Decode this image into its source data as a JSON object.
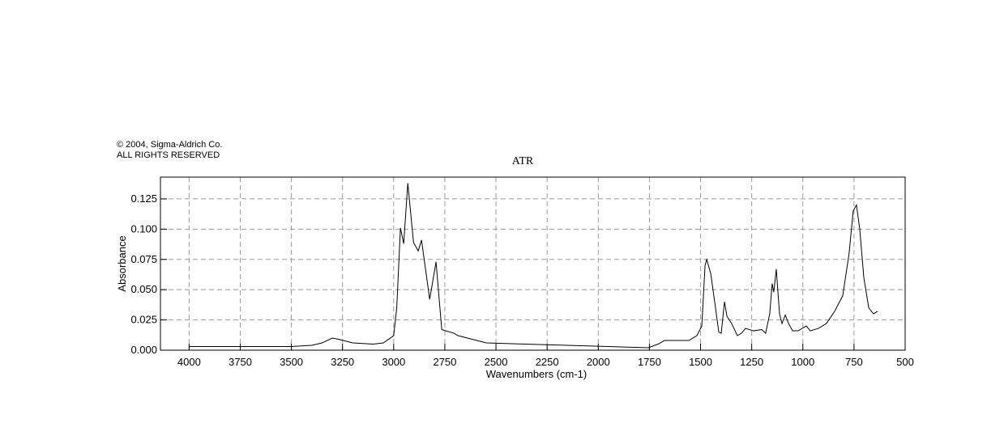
{
  "copyright": [
    "© 2004, Sigma-Aldrich Co.",
    "ALL RIGHTS RESERVED"
  ],
  "chart_data": {
    "type": "line",
    "title": "ATR",
    "x_label": "Wavenumbers (cm-1)",
    "y_label": "Absorbance",
    "xlim": [
      4140,
      500
    ],
    "ylim": [
      0,
      0.143
    ],
    "xticks": [
      4000,
      3750,
      3500,
      3250,
      3000,
      2750,
      2500,
      2250,
      2000,
      1750,
      1500,
      1250,
      1000,
      750,
      500
    ],
    "yticks": [
      {
        "value": 0,
        "label": "0.000"
      },
      0.025,
      {
        "value": 0.05,
        "label": "0.050"
      },
      0.075,
      {
        "value": 0.1,
        "label": "0.100"
      },
      0.125
    ],
    "grid": true,
    "series": [
      {
        "color": "#000000",
        "x": [
          4000,
          3500,
          3400,
          3350,
          3300,
          3270,
          3200,
          3100,
          3050,
          3000,
          2985,
          2967,
          2951,
          2931,
          2903,
          2880,
          2864,
          2824,
          2793,
          2765,
          2705,
          2686,
          2547,
          2151,
          1755,
          1708,
          1676,
          1557,
          1518,
          1494,
          1478,
          1470,
          1450,
          1431,
          1411,
          1399,
          1383,
          1371,
          1348,
          1320,
          1300,
          1280,
          1241,
          1201,
          1182,
          1162,
          1150,
          1142,
          1130,
          1114,
          1102,
          1086,
          1070,
          1050,
          1023,
          983,
          964,
          924,
          885,
          845,
          805,
          774,
          754,
          738,
          722,
          702,
          678,
          655,
          635
        ],
        "values": [
          0.003,
          0.003,
          0.004,
          0.006,
          0.01,
          0.009,
          0.006,
          0.005,
          0.006,
          0.012,
          0.035,
          0.101,
          0.088,
          0.138,
          0.089,
          0.082,
          0.091,
          0.042,
          0.073,
          0.017,
          0.014,
          0.012,
          0.006,
          0.004,
          0.002,
          0.005,
          0.008,
          0.008,
          0.012,
          0.02,
          0.07,
          0.075,
          0.063,
          0.04,
          0.015,
          0.014,
          0.04,
          0.028,
          0.022,
          0.012,
          0.014,
          0.018,
          0.016,
          0.017,
          0.014,
          0.03,
          0.055,
          0.048,
          0.067,
          0.03,
          0.022,
          0.029,
          0.022,
          0.016,
          0.016,
          0.02,
          0.016,
          0.018,
          0.022,
          0.032,
          0.045,
          0.08,
          0.115,
          0.12,
          0.1,
          0.06,
          0.035,
          0.03,
          0.032
        ]
      }
    ]
  }
}
